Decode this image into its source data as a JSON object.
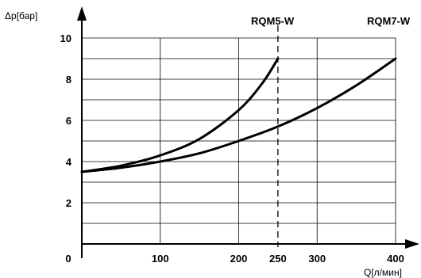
{
  "chart_data": {
    "type": "line",
    "ylabel": "Δp[бар]",
    "xlabel": "Q[л/мин]",
    "xlim": [
      0,
      400
    ],
    "ylim": [
      0,
      10
    ],
    "x_ticks": [
      "0",
      "100",
      "200",
      "250",
      "300",
      "400"
    ],
    "x_tick_values": [
      0,
      100,
      200,
      250,
      300,
      400
    ],
    "y_ticks": [
      "2",
      "4",
      "6",
      "8",
      "10"
    ],
    "y_tick_values": [
      2,
      4,
      6,
      8,
      10
    ],
    "grid": true,
    "series": [
      {
        "name": "RQM5-W",
        "x": [
          0,
          50,
          100,
          150,
          200,
          230,
          250
        ],
        "y": [
          3.5,
          3.8,
          4.3,
          5.1,
          6.5,
          7.8,
          9.0
        ]
      },
      {
        "name": "RQM7-W",
        "x": [
          0,
          50,
          100,
          150,
          200,
          250,
          300,
          350,
          400
        ],
        "y": [
          3.5,
          3.7,
          4.0,
          4.4,
          5.0,
          5.7,
          6.6,
          7.7,
          9.0
        ]
      }
    ],
    "vertical_marker": {
      "x": 250
    }
  }
}
